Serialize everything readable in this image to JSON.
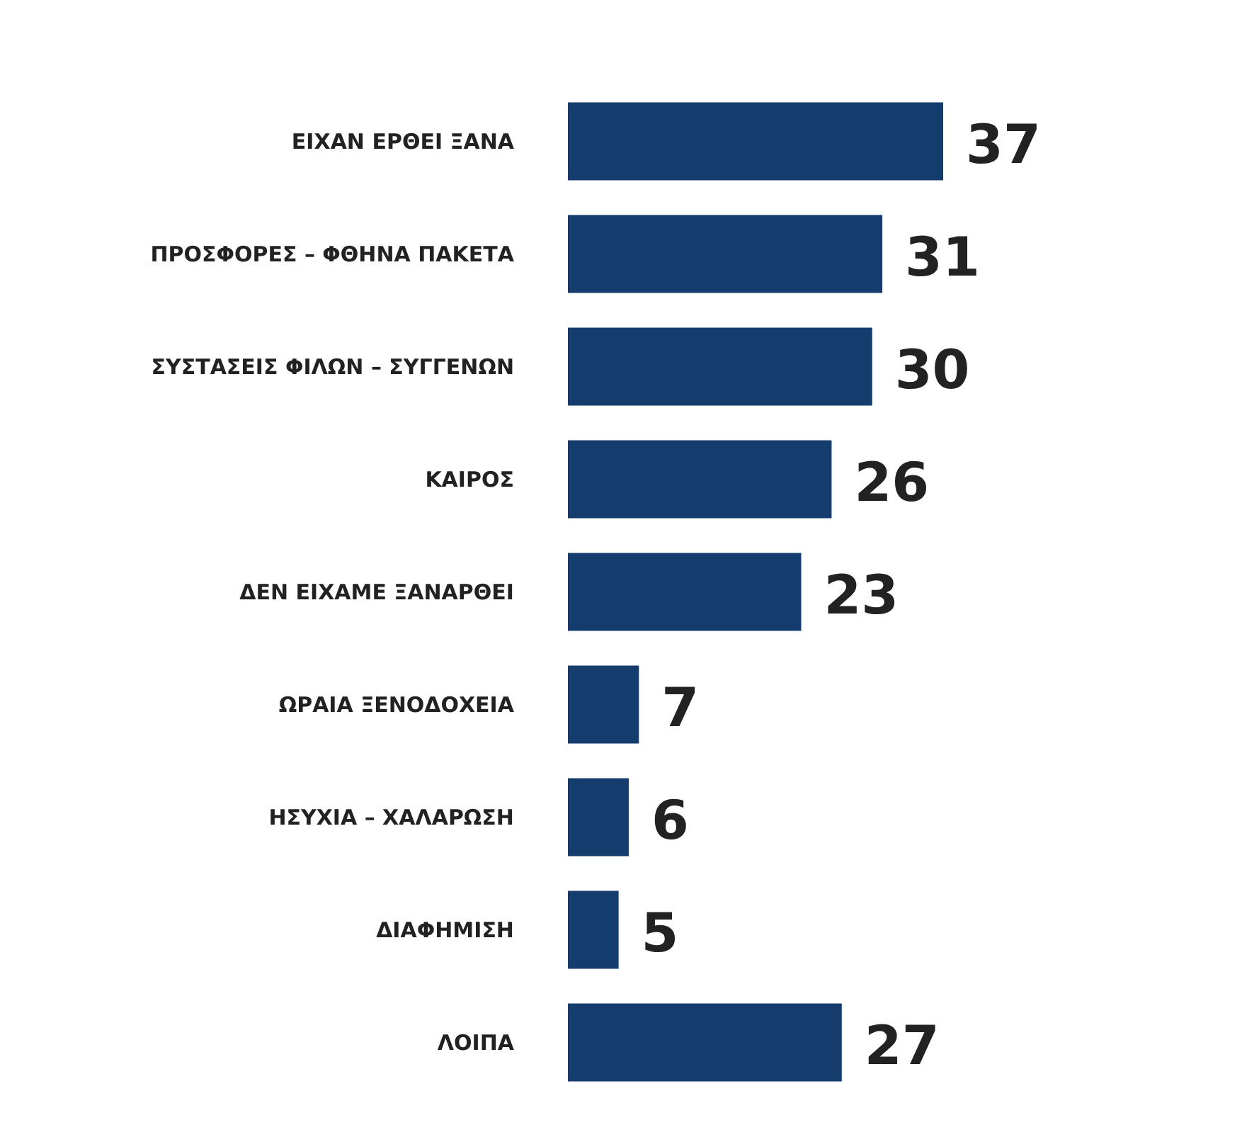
{
  "chart_data": {
    "type": "bar",
    "orientation": "horizontal",
    "categories": [
      "ΕΙΧΑΝ ΕΡΘΕΙ ΞΑΝΑ",
      "ΠΡΟΣΦΟΡΕΣ – ΦΘΗΝΑ ΠΑΚΕΤΑ",
      "ΣΥΣΤΑΣΕΙΣ ΦΙΛΩΝ – ΣΥΓΓΕΝΩΝ",
      "ΚΑΙΡΟΣ",
      "ΔΕΝ ΕΙΧΑΜΕ ΞΑΝΑΡΘΕΙ",
      "ΩΡΑΙΑ ΞΕΝΟΔΟΧΕΙΑ",
      "ΗΣΥΧΙΑ – ΧΑΛΑΡΩΣΗ",
      "ΔΙΑΦΗΜΙΣΗ",
      "ΛΟΙΠΑ"
    ],
    "values": [
      37,
      31,
      30,
      26,
      23,
      7,
      6,
      5,
      27
    ],
    "color": "#143d6e",
    "data_labels": true
  }
}
